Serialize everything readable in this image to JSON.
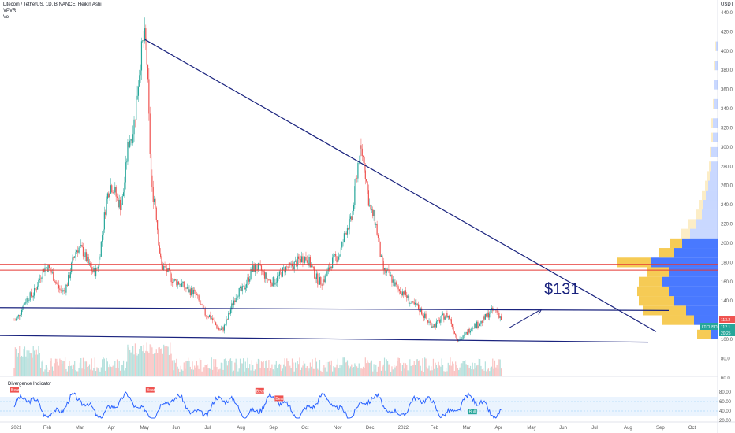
{
  "header": {
    "symbol_line": "Litecoin / TetherUS, 1D, BINANCE, Heikin Ashi",
    "line2": "VPVR",
    "line3": "Vol",
    "rsi_label": "Divergence Indicator"
  },
  "currency_label": "USDT",
  "price_axis_ticks": [
    "440.0",
    "420.0",
    "400.0",
    "380.0",
    "360.0",
    "340.0",
    "320.0",
    "300.0",
    "280.0",
    "260.0",
    "240.0",
    "220.0",
    "200.0",
    "180.0",
    "160.0",
    "140.0",
    "120.0",
    "100.0",
    "80.0",
    "60.0"
  ],
  "rsi_axis_ticks": [
    "80.00",
    "60.00",
    "40.00",
    "20.00"
  ],
  "time_axis_labels": [
    "2021",
    "Feb",
    "Mar",
    "Apr",
    "May",
    "Jun",
    "Jul",
    "Aug",
    "Sep",
    "Oct",
    "Nov",
    "Dec",
    "2022",
    "Feb",
    "Mar",
    "Apr",
    "May",
    "Jun",
    "Jul",
    "Aug",
    "Sep",
    "Oct"
  ],
  "annotation_text": "$131",
  "price_tags": {
    "symbol": "LTCUSDT",
    "last": "112.1",
    "countdown": "20:25",
    "red": "113.2"
  },
  "signal_labels": [
    "Bear",
    "Bear",
    "Bear",
    "Bear",
    "Bull"
  ],
  "colors": {
    "up_candle": "#26a69a",
    "down_candle": "#ef5350",
    "trendline": "#1a237e",
    "resistance_line": "#e53935",
    "rsi_line": "#2962ff",
    "vp_up": "#2962ff",
    "vp_down": "#f5c542"
  },
  "chart_data": {
    "type": "candlestick",
    "title": "Litecoin / TetherUS, 1D, BINANCE, Heikin Ashi",
    "y_unit": "USDT",
    "ylim": [
      60,
      440
    ],
    "key_points": {
      "peak_2021_may": 412,
      "peak_2021_nov": 295,
      "resistance_red": 178,
      "support_low": 100,
      "support_high": 131,
      "target": 131,
      "last_price": 112.1
    },
    "monthly_close": [
      {
        "month": "2021-01",
        "price": 130
      },
      {
        "month": "2021-02",
        "price": 180
      },
      {
        "month": "2021-03",
        "price": 200
      },
      {
        "month": "2021-04",
        "price": 280
      },
      {
        "month": "2021-05",
        "price": 230
      },
      {
        "month": "2021-06",
        "price": 140
      },
      {
        "month": "2021-07",
        "price": 130
      },
      {
        "month": "2021-08",
        "price": 175
      },
      {
        "month": "2021-09",
        "price": 165
      },
      {
        "month": "2021-10",
        "price": 190
      },
      {
        "month": "2021-11",
        "price": 230
      },
      {
        "month": "2021-12",
        "price": 150
      },
      {
        "month": "2022-01",
        "price": 135
      },
      {
        "month": "2022-02",
        "price": 118
      },
      {
        "month": "2022-03",
        "price": 105
      },
      {
        "month": "2022-04",
        "price": 112
      }
    ],
    "rsi_ylim": [
      20,
      90
    ]
  }
}
